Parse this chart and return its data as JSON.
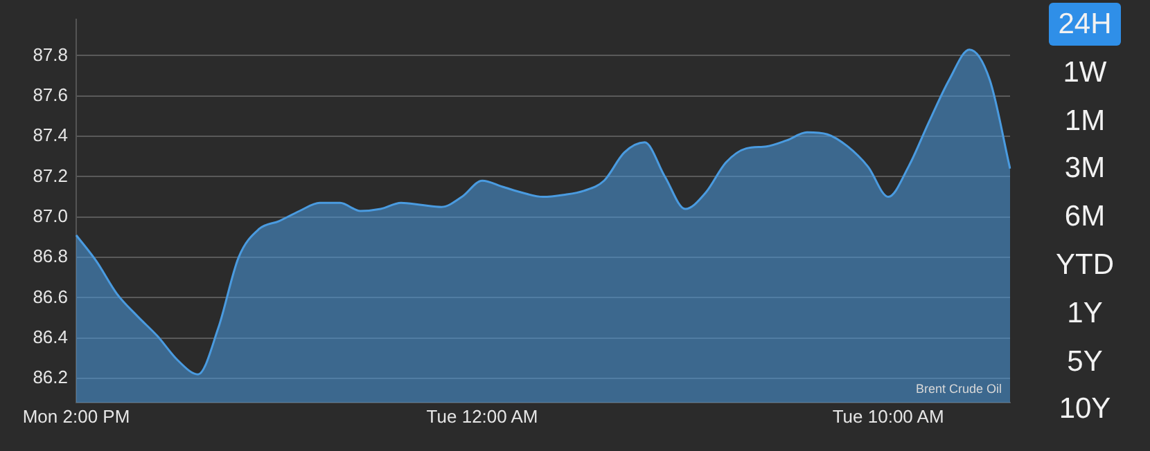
{
  "chart_data": {
    "type": "area",
    "categories": [
      "Mon 2:00 PM",
      null,
      null,
      null,
      null,
      null,
      null,
      null,
      null,
      null,
      null,
      null,
      null,
      null,
      null,
      null,
      null,
      null,
      null,
      null,
      "Tue 12:00 AM",
      null,
      null,
      null,
      null,
      null,
      null,
      null,
      null,
      null,
      null,
      null,
      null,
      null,
      null,
      null,
      null,
      null,
      null,
      null,
      "Tue 10:00 AM",
      null,
      null,
      null,
      null,
      null,
      null
    ],
    "series": [
      {
        "color": "#4a9be0",
        "values": [
          86.91,
          86.78,
          86.62,
          86.51,
          86.41,
          86.29,
          86.22,
          86.45,
          86.8,
          86.94,
          86.98,
          87.03,
          87.07,
          87.07,
          87.03,
          87.04,
          87.07,
          87.06,
          87.05,
          87.1,
          87.18,
          87.15,
          87.12,
          87.1,
          87.11,
          87.13,
          87.18,
          87.32,
          87.37,
          87.2,
          87.04,
          87.12,
          87.27,
          87.34,
          87.35,
          87.38,
          87.42,
          87.41,
          87.35,
          87.25,
          87.1,
          87.25,
          87.47,
          87.68,
          87.83,
          87.68,
          87.24
        ]
      }
    ],
    "ylim": [
      86.08,
      87.98
    ],
    "yticks": [
      86.2,
      86.4,
      86.6,
      86.8,
      {
        "value": 87,
        "label": "87.0"
      },
      87.2,
      87.4,
      87.6,
      87.8
    ],
    "grid": "y",
    "legend": false,
    "marker": "none",
    "line_style": "solid",
    "annotations": [
      "Brent Crude Oil",
      "24H",
      "1W",
      "1M",
      "3M",
      "6M",
      "YTD",
      "1Y",
      "5Y",
      "10Y"
    ]
  }
}
